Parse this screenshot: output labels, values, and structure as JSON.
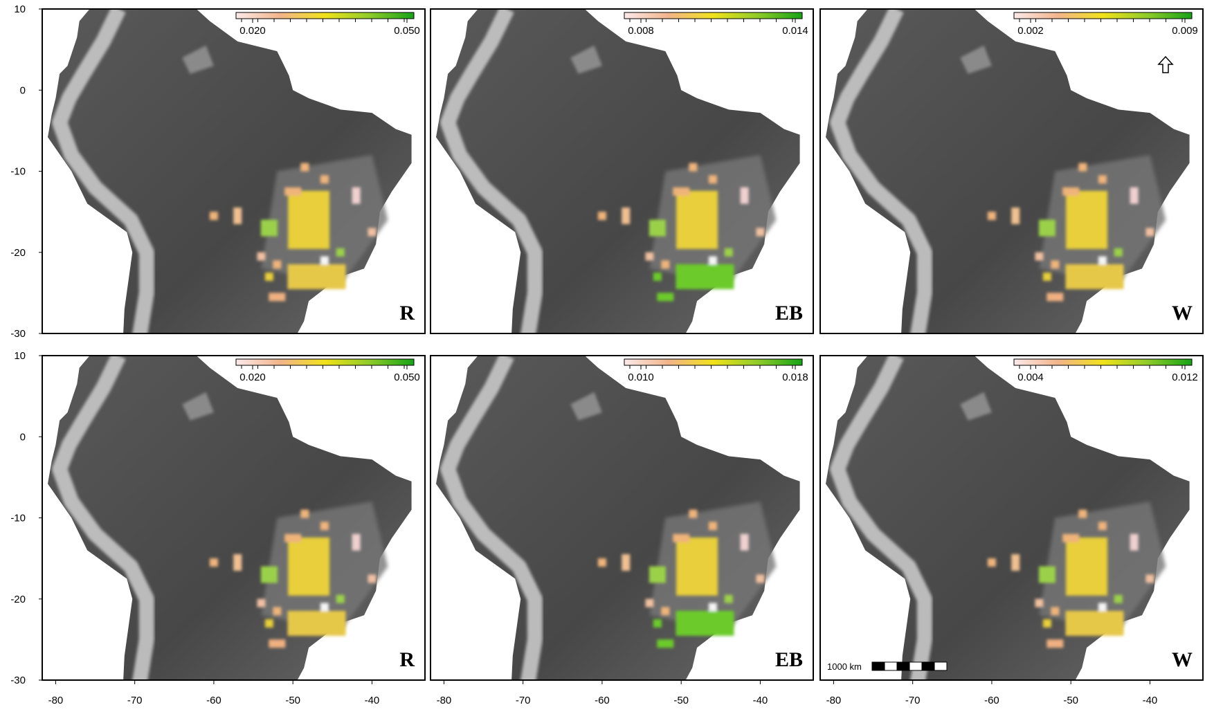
{
  "axes": {
    "lat_ticks": [
      10,
      0,
      -10,
      -20,
      -30
    ],
    "lon_ticks": [
      -80,
      -70,
      -60,
      -50,
      -40
    ]
  },
  "panels": [
    {
      "label": "R",
      "colorbar": [
        {
          "value": 0.02,
          "label": "0.020"
        },
        {
          "value": 0.05,
          "label": "0.050"
        }
      ]
    },
    {
      "label": "EB",
      "colorbar": [
        {
          "value": 0.008,
          "label": "0.008"
        },
        {
          "value": 0.014,
          "label": "0.014"
        }
      ]
    },
    {
      "label": "W",
      "colorbar": [
        {
          "value": 0.002,
          "label": "0.002"
        },
        {
          "value": 0.009,
          "label": "0.009"
        }
      ]
    },
    {
      "label": "R",
      "colorbar": [
        {
          "value": 0.02,
          "label": "0.020"
        },
        {
          "value": 0.05,
          "label": "0.050"
        }
      ]
    },
    {
      "label": "EB",
      "colorbar": [
        {
          "value": 0.01,
          "label": "0.010"
        },
        {
          "value": 0.018,
          "label": "0.018"
        }
      ]
    },
    {
      "label": "W",
      "colorbar": [
        {
          "value": 0.004,
          "label": "0.004"
        },
        {
          "value": 0.012,
          "label": "0.012"
        }
      ]
    }
  ],
  "scale_bar": "1000 km"
}
